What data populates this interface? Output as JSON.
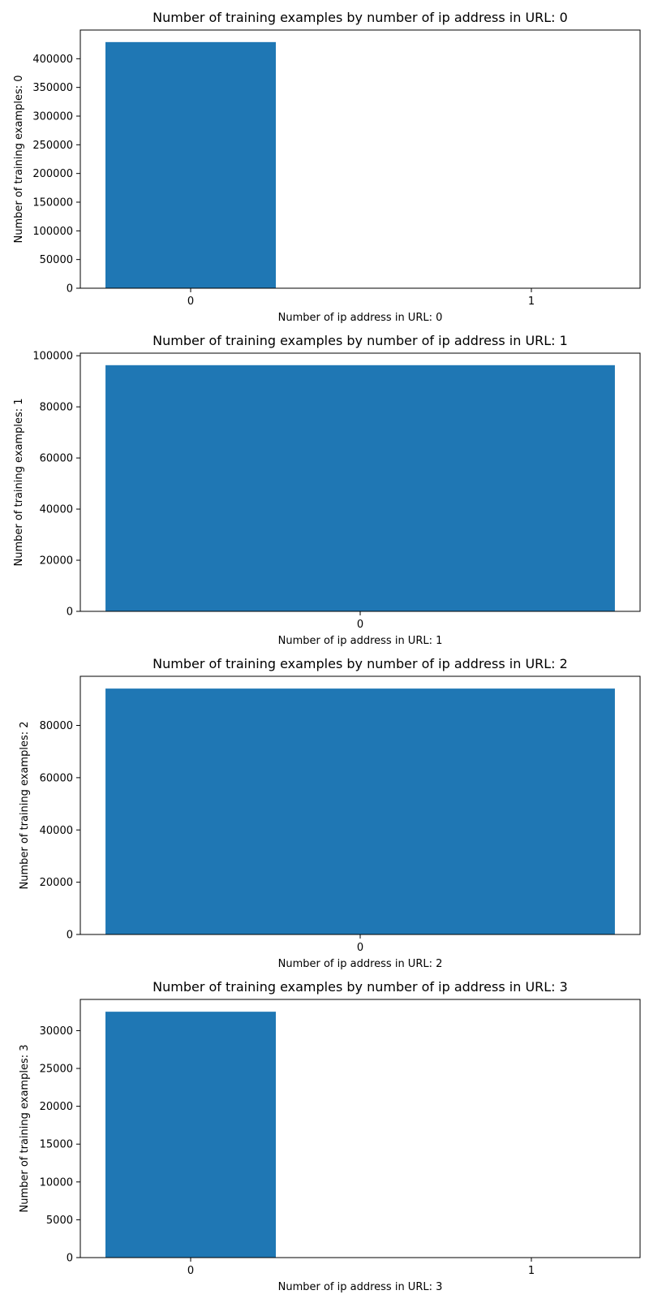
{
  "chart_data": [
    {
      "type": "bar",
      "title": "Number of training examples by number of ip address in URL: 0",
      "xlabel": "Number of ip address in URL: 0",
      "ylabel": "Number of training examples: 0",
      "categories": [
        "0",
        "1"
      ],
      "values": [
        429000,
        0
      ],
      "yticks": [
        0,
        50000,
        100000,
        150000,
        200000,
        250000,
        300000,
        350000,
        400000
      ],
      "ylim": [
        0,
        450000
      ],
      "grid": false,
      "color": "#1f77b4"
    },
    {
      "type": "bar",
      "title": "Number of training examples by number of ip address in URL: 1",
      "xlabel": "Number of ip address in URL: 1",
      "ylabel": "Number of training examples: 1",
      "categories": [
        "0"
      ],
      "values": [
        96300
      ],
      "yticks": [
        0,
        20000,
        40000,
        60000,
        80000,
        100000
      ],
      "ylim": [
        0,
        101000
      ],
      "grid": false,
      "color": "#1f77b4"
    },
    {
      "type": "bar",
      "title": "Number of training examples by number of ip address in URL: 2",
      "xlabel": "Number of ip address in URL: 2",
      "ylabel": "Number of training examples: 2",
      "categories": [
        "0"
      ],
      "values": [
        94100
      ],
      "yticks": [
        0,
        20000,
        40000,
        60000,
        80000
      ],
      "ylim": [
        0,
        98800
      ],
      "grid": false,
      "color": "#1f77b4"
    },
    {
      "type": "bar",
      "title": "Number of training examples by number of ip address in URL: 3",
      "xlabel": "Number of ip address in URL: 3",
      "ylabel": "Number of training examples: 3",
      "categories": [
        "0",
        "1"
      ],
      "values": [
        32500,
        0
      ],
      "yticks": [
        0,
        5000,
        10000,
        15000,
        20000,
        25000,
        30000
      ],
      "ylim": [
        0,
        34125
      ],
      "grid": false,
      "color": "#1f77b4"
    }
  ]
}
